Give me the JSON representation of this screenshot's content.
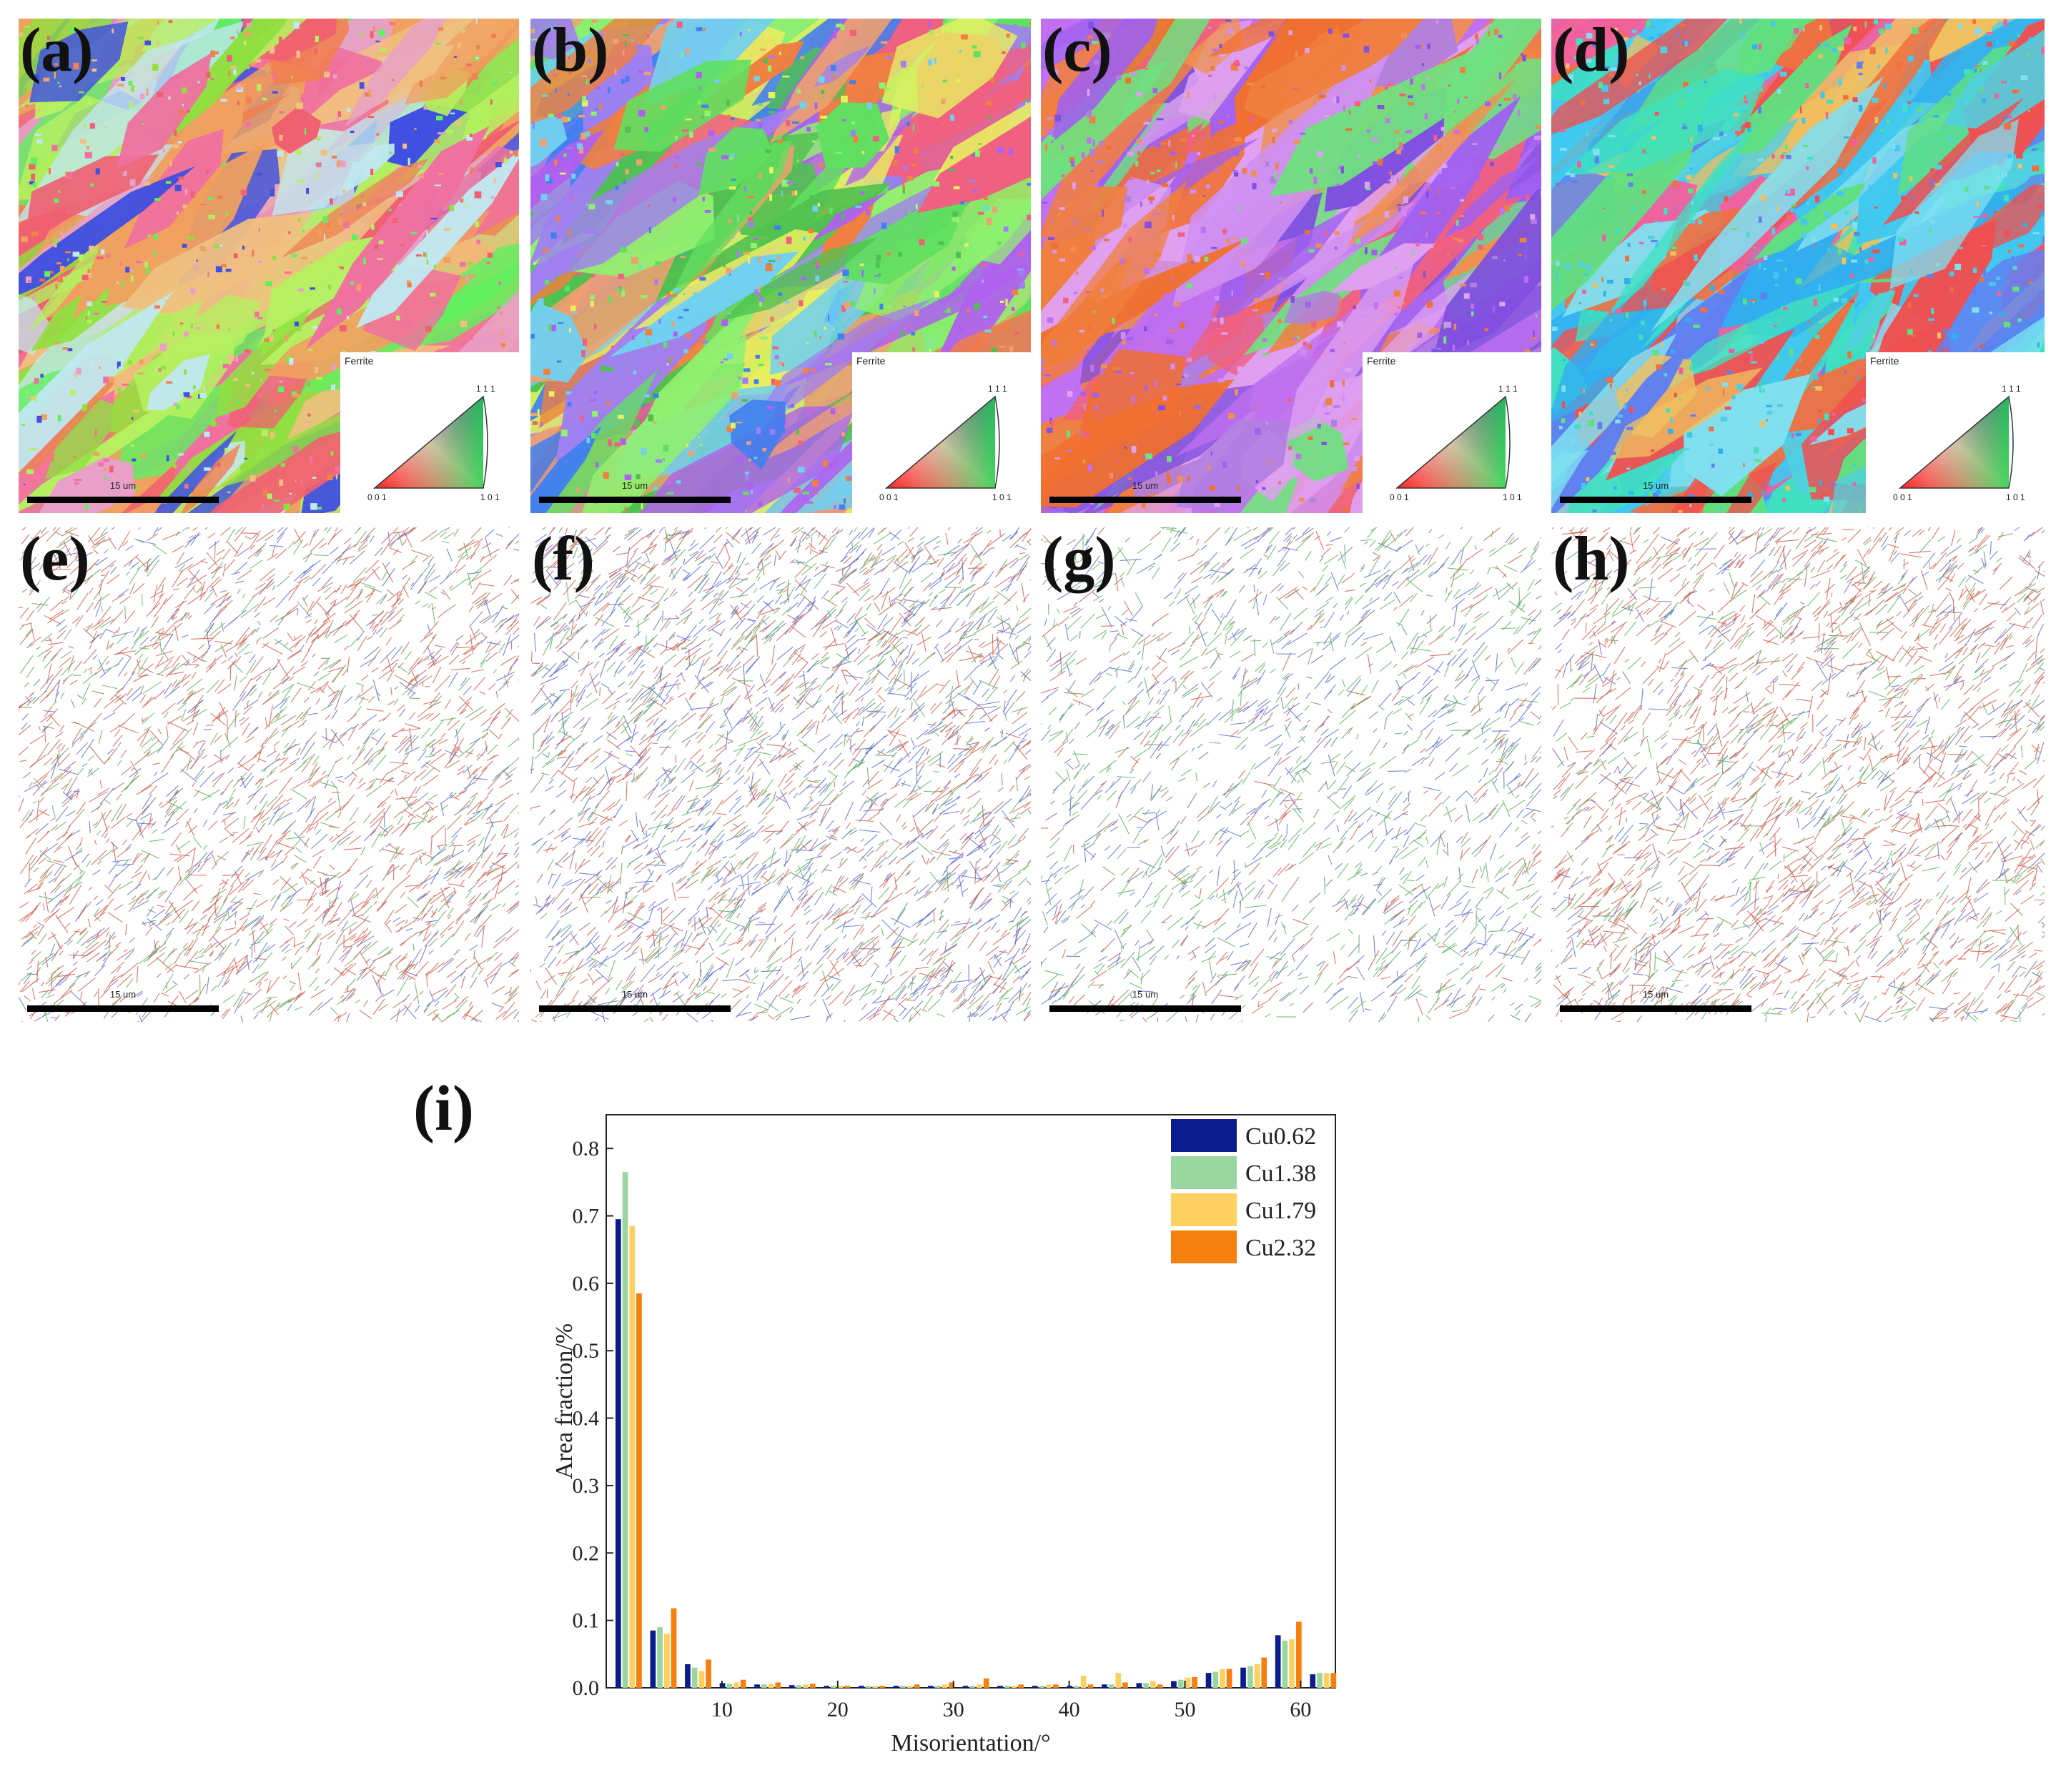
{
  "panels": [
    {
      "id": "a",
      "label": "(a)",
      "type": "ipf",
      "scale_label": "15 um",
      "legend_title": "Ferrite",
      "palette": [
        "#f0a060",
        "#b6f060",
        "#60f060",
        "#f070a0",
        "#f06070",
        "#e8a0c8",
        "#4050e0",
        "#c0e8f0",
        "#f0c080",
        "#90e040",
        "#f08050"
      ]
    },
    {
      "id": "b",
      "label": "(b)",
      "type": "ipf",
      "scale_label": "15 um",
      "legend_title": "Ferrite",
      "palette": [
        "#60e060",
        "#90f070",
        "#b060f0",
        "#f08040",
        "#4080f0",
        "#f06080",
        "#70d0f0",
        "#e8f060",
        "#a080f0",
        "#50c050",
        "#f0a070"
      ]
    },
    {
      "id": "c",
      "label": "(c)",
      "type": "ipf",
      "scale_label": "15 um",
      "legend_title": "Ferrite",
      "palette": [
        "#c070f0",
        "#a060f0",
        "#d090f0",
        "#f08040",
        "#f07030",
        "#8050e0",
        "#e0a0f0",
        "#70e080",
        "#f06080",
        "#b080e0",
        "#f09050"
      ]
    },
    {
      "id": "d",
      "label": "(d)",
      "type": "ipf",
      "scale_label": "15 um",
      "legend_title": "Ferrite",
      "palette": [
        "#40c8f0",
        "#50d0e0",
        "#30b0f0",
        "#f05050",
        "#60e080",
        "#f07040",
        "#80e0f0",
        "#f060a0",
        "#40e0c0",
        "#f0c060",
        "#6080f0"
      ]
    },
    {
      "id": "e",
      "label": "(e)",
      "type": "boundary",
      "scale_label": "15 um",
      "density": 1.0,
      "line_colors": [
        "#d06050",
        "#d06050",
        "#d06050",
        "#6070d0",
        "#60b060"
      ]
    },
    {
      "id": "f",
      "label": "(f)",
      "type": "boundary",
      "scale_label": "15 um",
      "density": 1.1,
      "line_colors": [
        "#d06050",
        "#d06050",
        "#6070d0",
        "#6070d0",
        "#60b060"
      ]
    },
    {
      "id": "g",
      "label": "(g)",
      "type": "boundary",
      "scale_label": "15 um",
      "density": 0.7,
      "line_colors": [
        "#d06050",
        "#6070d0",
        "#6070d0",
        "#60b060",
        "#60b060"
      ]
    },
    {
      "id": "h",
      "label": "(h)",
      "type": "boundary",
      "scale_label": "15 um",
      "density": 1.0,
      "line_colors": [
        "#d06050",
        "#d06050",
        "#d06050",
        "#6070d0",
        "#60b060"
      ]
    }
  ],
  "ipf_legend_ticks": {
    "top": "1 1 1",
    "left": "0 0 1",
    "right": "1 0 1"
  },
  "chart_label": "(i)",
  "chart_data": {
    "type": "bar",
    "xlabel": "Misorientation/°",
    "ylabel": "Area fraction/%",
    "xlim": [
      0,
      63
    ],
    "ylim": [
      0,
      0.85
    ],
    "xticks": [
      10,
      20,
      30,
      40,
      50,
      60
    ],
    "yticks": [
      0.0,
      0.1,
      0.2,
      0.3,
      0.4,
      0.5,
      0.6,
      0.7,
      0.8
    ],
    "legend_position": "top-right",
    "x": [
      2,
      5,
      8,
      11,
      14,
      17,
      20,
      23,
      26,
      29,
      32,
      35,
      38,
      41,
      44,
      47,
      50,
      53,
      56,
      59,
      62
    ],
    "series": [
      {
        "name": "Cu0.62",
        "color": "#0b1c8c",
        "values": [
          0.695,
          0.085,
          0.035,
          0.007,
          0.005,
          0.004,
          0.003,
          0.003,
          0.003,
          0.003,
          0.003,
          0.003,
          0.003,
          0.003,
          0.005,
          0.007,
          0.01,
          0.022,
          0.03,
          0.078,
          0.02
        ]
      },
      {
        "name": "Cu1.38",
        "color": "#9ad6a0",
        "values": [
          0.765,
          0.09,
          0.03,
          0.006,
          0.005,
          0.004,
          0.003,
          0.003,
          0.003,
          0.003,
          0.003,
          0.003,
          0.003,
          0.003,
          0.005,
          0.007,
          0.012,
          0.024,
          0.032,
          0.07,
          0.022
        ]
      },
      {
        "name": "Cu1.79",
        "color": "#fdd060",
        "values": [
          0.685,
          0.08,
          0.025,
          0.008,
          0.006,
          0.005,
          0.003,
          0.003,
          0.003,
          0.005,
          0.005,
          0.003,
          0.005,
          0.018,
          0.022,
          0.01,
          0.015,
          0.028,
          0.035,
          0.072,
          0.022
        ]
      },
      {
        "name": "Cu2.32",
        "color": "#f58010",
        "values": [
          0.585,
          0.118,
          0.042,
          0.012,
          0.008,
          0.006,
          0.003,
          0.003,
          0.005,
          0.008,
          0.014,
          0.005,
          0.005,
          0.005,
          0.008,
          0.005,
          0.016,
          0.028,
          0.045,
          0.098,
          0.022
        ]
      }
    ]
  }
}
